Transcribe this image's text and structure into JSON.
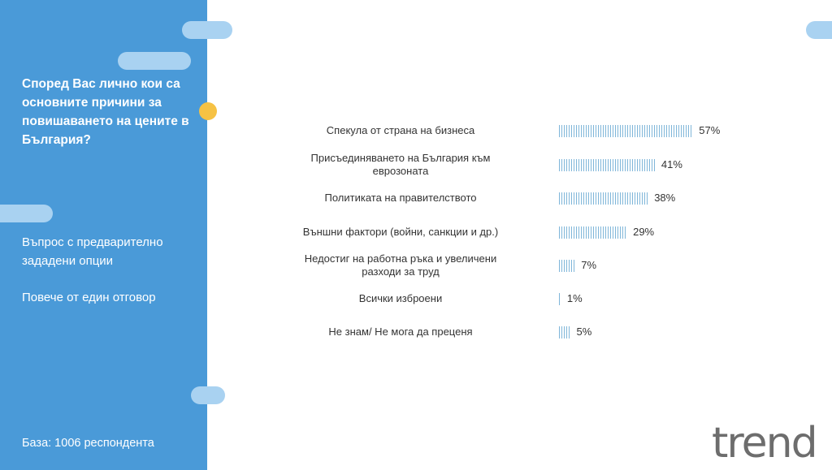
{
  "sidebar": {
    "question": "Според Вас лично кои са основните причини за повишаването на цените в България?",
    "note1": "Въпрос с предварително зададени опции",
    "note2": "Повече от един отговор",
    "base": "База:  1006 респондента"
  },
  "logo": {
    "text": "trend"
  },
  "colors": {
    "sidebar": "#4a9ad8",
    "accent_pill": "#a9d2f1",
    "accent_dot": "#f6c244",
    "bar": "#7fb6d9"
  },
  "chart_data": {
    "type": "bar",
    "orientation": "horizontal",
    "categories": [
      "Спекула от страна на бизнеса",
      "Присъединяването на България към еврозоната",
      "Политиката на правителството",
      "Външни фактори (войни, санкции и др.)",
      "Недостиг на работна ръка и увеличени разходи за труд",
      "Всички изброени",
      "Не знам/ Не мога да преценя"
    ],
    "values": [
      57,
      41,
      38,
      29,
      7,
      1,
      5
    ],
    "value_labels": [
      "57%",
      "41%",
      "38%",
      "29%",
      "7%",
      "1%",
      "5%"
    ],
    "xlim": [
      0,
      100
    ],
    "grid": false
  }
}
